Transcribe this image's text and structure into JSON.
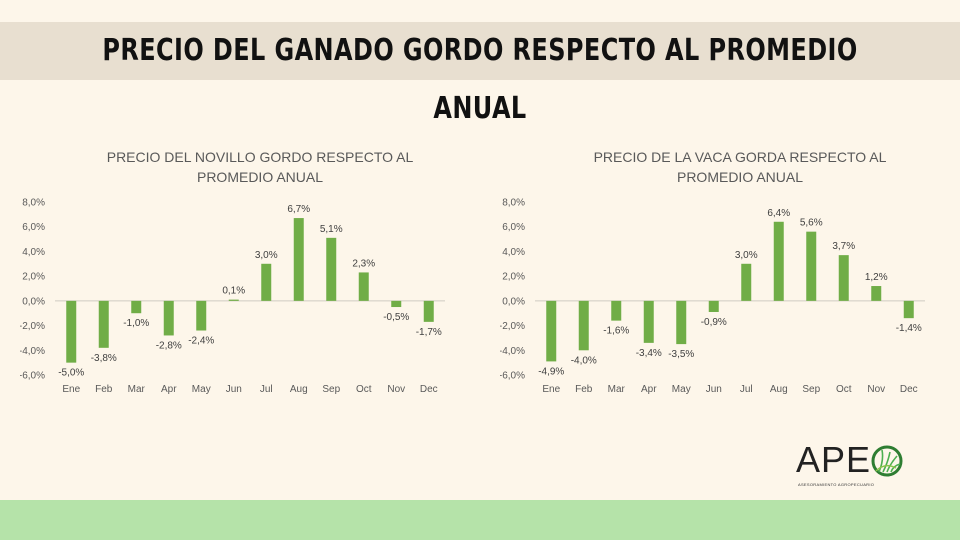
{
  "header": {
    "title": "PRECIO DEL GANADO GORDO RESPECTO AL PROMEDIO ANUAL"
  },
  "brand": {
    "logo_text": "APE",
    "logo_subtitle": "ASESORAMIENTO AGROPECUARIO",
    "icon": "grass-circle-icon"
  },
  "colors": {
    "bar": "#70ad47",
    "background": "#fdf6ea",
    "title_band": "#e8dfd0",
    "footer_band": "#b5e3a9"
  },
  "chart_data": [
    {
      "type": "bar",
      "title_lines": [
        "PRECIO DEL NOVILLO GORDO RESPECTO AL",
        "PROMEDIO ANUAL"
      ],
      "categories": [
        "Ene",
        "Feb",
        "Mar",
        "Apr",
        "May",
        "Jun",
        "Jul",
        "Aug",
        "Sep",
        "Oct",
        "Nov",
        "Dec"
      ],
      "values": [
        -5.0,
        -3.8,
        -1.0,
        -2.8,
        -2.4,
        0.1,
        3.0,
        6.7,
        5.1,
        2.3,
        -0.5,
        -1.7
      ],
      "value_labels": [
        "-5,0%",
        "-3,8%",
        "-1,0%",
        "-2,8%",
        "-2,4%",
        "0,1%",
        "3,0%",
        "6,7%",
        "5,1%",
        "2,3%",
        "-0,5%",
        "-1,7%"
      ],
      "yticks": [
        "8,0%",
        "6,0%",
        "4,0%",
        "2,0%",
        "0,0%",
        "-2,0%",
        "-4,0%",
        "-6,0%"
      ],
      "ylim": [
        -6,
        8
      ],
      "grid": false
    },
    {
      "type": "bar",
      "title_lines": [
        "PRECIO DE LA VACA GORDA RESPECTO AL",
        "PROMEDIO ANUAL"
      ],
      "categories": [
        "Ene",
        "Feb",
        "Mar",
        "Apr",
        "May",
        "Jun",
        "Jul",
        "Aug",
        "Sep",
        "Oct",
        "Nov",
        "Dec"
      ],
      "values": [
        -4.9,
        -4.0,
        -1.6,
        -3.4,
        -3.5,
        -0.9,
        3.0,
        6.4,
        5.6,
        3.7,
        1.2,
        -1.4
      ],
      "value_labels": [
        "-4,9%",
        "-4,0%",
        "-1,6%",
        "-3,4%",
        "-3,5%",
        "-0,9%",
        "3,0%",
        "6,4%",
        "5,6%",
        "3,7%",
        "1,2%",
        "-1,4%"
      ],
      "yticks": [
        "8,0%",
        "6,0%",
        "4,0%",
        "2,0%",
        "0,0%",
        "-2,0%",
        "-4,0%",
        "-6,0%"
      ],
      "ylim": [
        -6,
        8
      ],
      "grid": false
    }
  ]
}
